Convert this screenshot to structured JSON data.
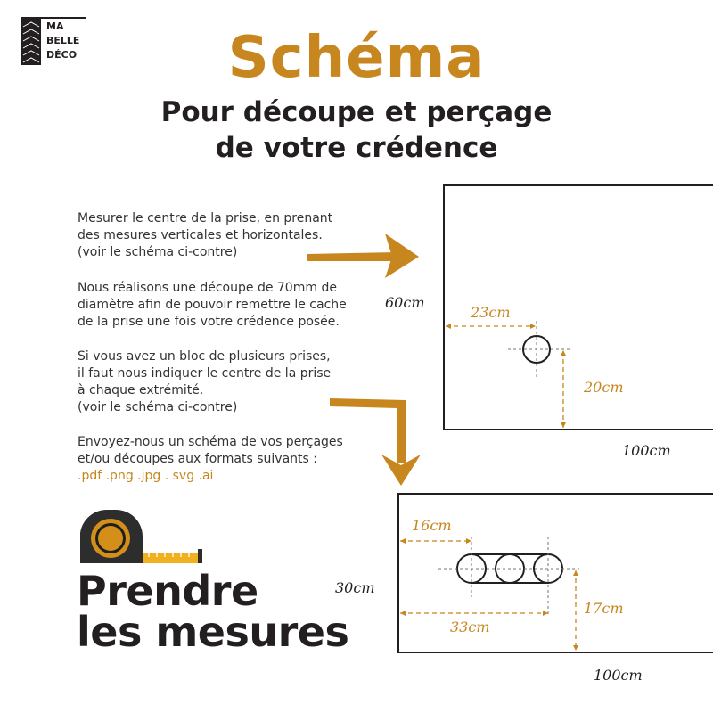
{
  "logo": {
    "lines": [
      "MA",
      "BELLE",
      "DÉCO"
    ]
  },
  "header": {
    "title": "Schéma",
    "subtitle_line1": "Pour découpe et perçage",
    "subtitle_line2": "de votre crédence"
  },
  "instructions": [
    "Mesurer le centre de la prise, en prenant\ndes mesures verticales et horizontales.\n(voir le schéma ci-contre)",
    "Nous réalisons une découpe de 70mm de\ndiamètre afin de pouvoir remettre le cache\nde la prise une fois votre crédence posée.",
    "Si vous avez un bloc de plusieurs prises,\nil faut nous indiquer le centre de la prise\nà chaque extrémité.\n(voir le schéma ci-contre)",
    "Envoyez-nous un schéma de vos perçages\net/ou découpes aux formats suivants :"
  ],
  "formats": ".pdf .png .jpg . svg .ai",
  "bottom_title": {
    "line1": "Prendre",
    "line2": "les mesures"
  },
  "diagram1": {
    "height": "60cm",
    "width": "100cm",
    "horizontal": "23cm",
    "vertical": "20cm"
  },
  "diagram2": {
    "height": "30cm",
    "width": "100cm",
    "horizontal_first": "16cm",
    "horizontal_last": "33cm",
    "vertical": "17cm"
  },
  "colors": {
    "accent": "#c8861f",
    "text": "#231f20"
  }
}
